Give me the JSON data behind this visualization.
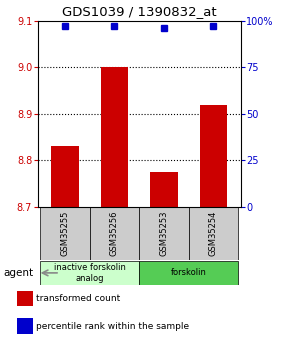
{
  "title": "GDS1039 / 1390832_at",
  "categories": [
    "GSM35255",
    "GSM35256",
    "GSM35253",
    "GSM35254"
  ],
  "bar_values": [
    8.83,
    9.0,
    8.775,
    8.92
  ],
  "percentile_values": [
    97,
    97,
    96,
    97
  ],
  "bar_color": "#cc0000",
  "percentile_color": "#0000cc",
  "ylim_left": [
    8.7,
    9.1
  ],
  "ylim_right": [
    0,
    100
  ],
  "yticks_left": [
    8.7,
    8.8,
    8.9,
    9.0,
    9.1
  ],
  "yticks_right": [
    0,
    25,
    50,
    75,
    100
  ],
  "ytick_labels_right": [
    "0",
    "25",
    "50",
    "75",
    "100%"
  ],
  "hlines": [
    8.8,
    8.9,
    9.0
  ],
  "groups": [
    {
      "label": "inactive forskolin\nanalog",
      "indices": [
        0,
        1
      ],
      "color": "#ccffcc"
    },
    {
      "label": "forskolin",
      "indices": [
        2,
        3
      ],
      "color": "#55cc55"
    }
  ],
  "agent_label": "agent",
  "legend_items": [
    {
      "color": "#cc0000",
      "label": "transformed count"
    },
    {
      "color": "#0000cc",
      "label": "percentile rank within the sample"
    }
  ],
  "title_fontsize": 9.5,
  "tick_fontsize": 7,
  "bar_width": 0.55,
  "background_color": "#ffffff",
  "sample_box_color": "#cccccc"
}
